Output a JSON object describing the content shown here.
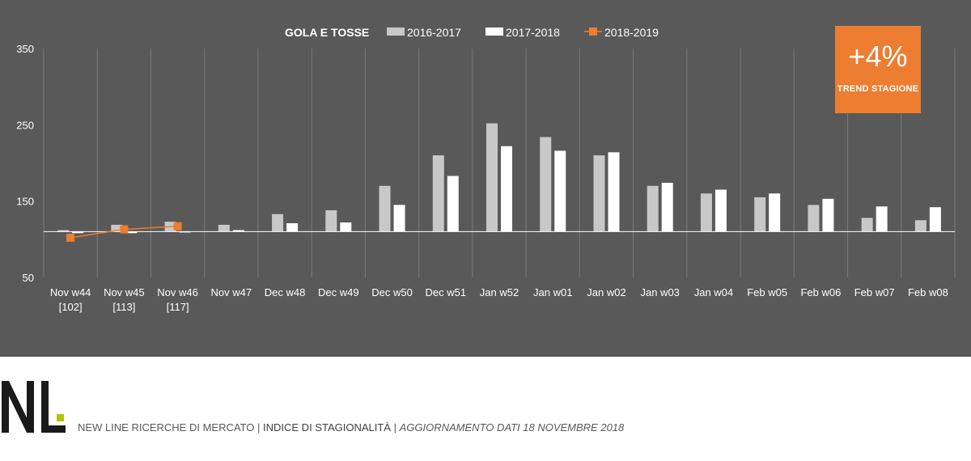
{
  "chart_data": {
    "type": "bar",
    "title": "GOLA E TOSSE",
    "categories": [
      "Nov w44",
      "Nov w45",
      "Nov w46",
      "Nov w47",
      "Dec w48",
      "Dec w49",
      "Dec w50",
      "Dec w51",
      "Jan w52",
      "Jan w01",
      "Jan w02",
      "Jan w03",
      "Jan w04",
      "Feb w05",
      "Feb w06",
      "Feb w07",
      "Feb w08"
    ],
    "category_sublabels": [
      "[102]",
      "[113]",
      "[117]",
      "",
      "",
      "",
      "",
      "",
      "",
      "",
      "",
      "",
      "",
      "",
      "",
      "",
      ""
    ],
    "baseline": 110,
    "series": [
      {
        "name": "2016-2017",
        "type": "bar",
        "color": "#c8c8c8",
        "values": [
          112,
          119,
          123,
          119,
          133,
          138,
          170,
          210,
          252,
          234,
          210,
          170,
          160,
          155,
          145,
          128,
          125
        ]
      },
      {
        "name": "2017-2018",
        "type": "bar",
        "color": "#ffffff",
        "values": [
          108,
          108,
          109,
          112,
          121,
          122,
          145,
          183,
          222,
          216,
          214,
          174,
          165,
          160,
          153,
          143,
          142
        ]
      },
      {
        "name": "2018-2019",
        "type": "line",
        "color": "#ed7d31",
        "values": [
          102,
          113,
          117,
          null,
          null,
          null,
          null,
          null,
          null,
          null,
          null,
          null,
          null,
          null,
          null,
          null,
          null
        ]
      }
    ],
    "yticks": [
      50,
      150,
      250,
      350
    ],
    "ylim": [
      50,
      350
    ],
    "grid": "vertical",
    "legend_position": "top-center"
  },
  "trend_badge": {
    "value": "+4%",
    "label": "TREND STAGIONE",
    "color": "#ed7d31"
  },
  "footer": {
    "company": "NEW LINE RICERCHE DI MERCATO",
    "separator": "|",
    "index_title": "INDICE DI STAGIONALITÀ",
    "update_text": "AGGIORNAMENTO DATI  18 NOVEMBRE 2018"
  }
}
